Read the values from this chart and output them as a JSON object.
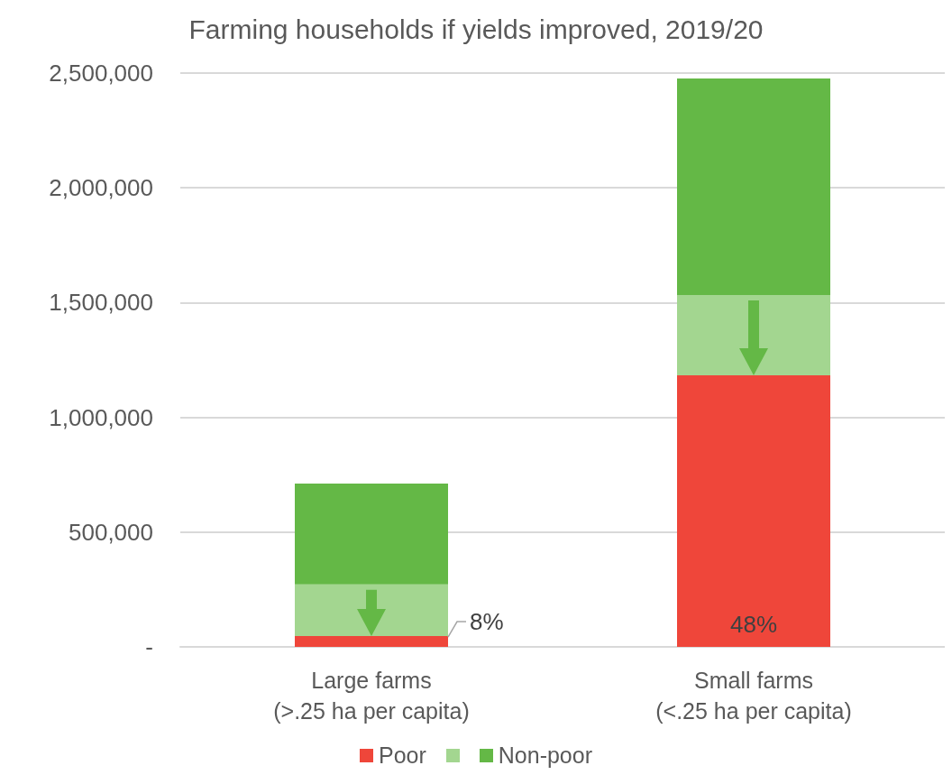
{
  "chart_data": {
    "type": "bar",
    "title": "Farming households if yields improved, 2019/20",
    "stacked": true,
    "categories": [
      "Large farms\n(>.25 ha per capita)",
      "Small farms\n(<.25 ha per capita)"
    ],
    "series": [
      {
        "name": "Poor",
        "color": "#ef463a",
        "values": [
          47000,
          1183000
        ]
      },
      {
        "name": null,
        "color": "#a3d690",
        "values": [
          225000,
          350000
        ]
      },
      {
        "name": "Non-poor",
        "color": "#64b846",
        "values": [
          439000,
          943000
        ]
      }
    ],
    "ylim": [
      0,
      2500000
    ],
    "yticks": [
      {
        "value": 0,
        "label": "-"
      },
      {
        "value": 500000,
        "label": "500,000"
      },
      {
        "value": 1000000,
        "label": "1,000,000"
      },
      {
        "value": 1500000,
        "label": "1,500,000"
      },
      {
        "value": 2000000,
        "label": "2,000,000"
      },
      {
        "value": 2500000,
        "label": "2,500,000"
      }
    ],
    "grid": "y",
    "legend": "bottom",
    "annotations": [
      "8%",
      "48%"
    ]
  }
}
